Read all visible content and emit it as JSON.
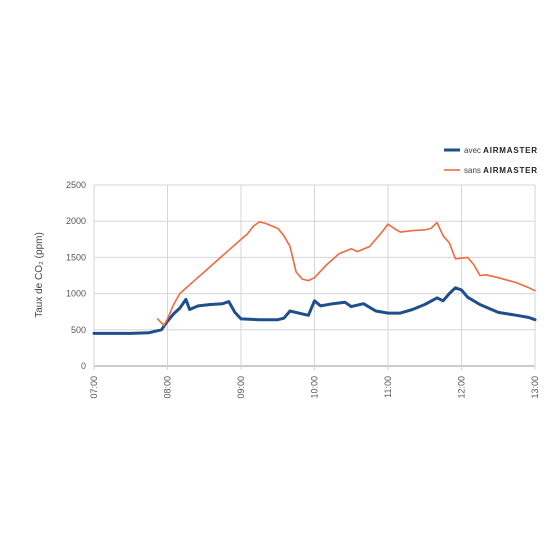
{
  "chart_data": {
    "type": "line",
    "title": "",
    "xlabel": "",
    "ylabel": "Taux de CO₂ (ppm)",
    "xlim": [
      "07:00",
      "13:00"
    ],
    "ylim": [
      0,
      2500
    ],
    "yticks": [
      0,
      500,
      1000,
      1500,
      2000,
      2500
    ],
    "xticks": [
      "07:00",
      "08:00",
      "09:00",
      "10:00",
      "11:00",
      "12:00",
      "13:00"
    ],
    "grid": "horizontal",
    "legend_position": "top-right",
    "series": [
      {
        "name": "avec AIRMASTER",
        "legend_prefix": "avec",
        "legend_brand": "AIRMASTER",
        "color": "#1f4e8c",
        "points": [
          [
            "07:00",
            450
          ],
          [
            "07:15",
            450
          ],
          [
            "07:30",
            450
          ],
          [
            "07:45",
            460
          ],
          [
            "07:55",
            500
          ],
          [
            "08:00",
            620
          ],
          [
            "08:05",
            720
          ],
          [
            "08:10",
            800
          ],
          [
            "08:15",
            920
          ],
          [
            "08:18",
            780
          ],
          [
            "08:25",
            830
          ],
          [
            "08:35",
            850
          ],
          [
            "08:45",
            860
          ],
          [
            "08:50",
            890
          ],
          [
            "08:55",
            740
          ],
          [
            "09:00",
            650
          ],
          [
            "09:15",
            640
          ],
          [
            "09:30",
            640
          ],
          [
            "09:35",
            660
          ],
          [
            "09:40",
            760
          ],
          [
            "09:50",
            720
          ],
          [
            "09:55",
            700
          ],
          [
            "10:00",
            900
          ],
          [
            "10:05",
            830
          ],
          [
            "10:15",
            860
          ],
          [
            "10:25",
            880
          ],
          [
            "10:30",
            820
          ],
          [
            "10:40",
            860
          ],
          [
            "10:50",
            760
          ],
          [
            "11:00",
            730
          ],
          [
            "11:10",
            730
          ],
          [
            "11:20",
            780
          ],
          [
            "11:30",
            850
          ],
          [
            "11:40",
            940
          ],
          [
            "11:45",
            900
          ],
          [
            "11:50",
            1000
          ],
          [
            "11:55",
            1080
          ],
          [
            "12:00",
            1050
          ],
          [
            "12:05",
            950
          ],
          [
            "12:15",
            850
          ],
          [
            "12:30",
            740
          ],
          [
            "12:45",
            700
          ],
          [
            "12:55",
            670
          ],
          [
            "13:00",
            640
          ]
        ]
      },
      {
        "name": "sans AIRMASTER",
        "legend_prefix": "sans",
        "legend_brand": "AIRMASTER",
        "color": "#f06a3e",
        "points": [
          [
            "07:52",
            650
          ],
          [
            "07:57",
            560
          ],
          [
            "08:00",
            650
          ],
          [
            "08:05",
            850
          ],
          [
            "08:10",
            1000
          ],
          [
            "08:20",
            1150
          ],
          [
            "08:30",
            1300
          ],
          [
            "08:40",
            1450
          ],
          [
            "08:50",
            1600
          ],
          [
            "09:00",
            1750
          ],
          [
            "09:05",
            1820
          ],
          [
            "09:10",
            1930
          ],
          [
            "09:15",
            1990
          ],
          [
            "09:20",
            1970
          ],
          [
            "09:30",
            1900
          ],
          [
            "09:35",
            1800
          ],
          [
            "09:40",
            1650
          ],
          [
            "09:45",
            1300
          ],
          [
            "09:50",
            1200
          ],
          [
            "09:55",
            1180
          ],
          [
            "10:00",
            1220
          ],
          [
            "10:10",
            1400
          ],
          [
            "10:20",
            1550
          ],
          [
            "10:30",
            1620
          ],
          [
            "10:35",
            1580
          ],
          [
            "10:45",
            1650
          ],
          [
            "10:55",
            1850
          ],
          [
            "11:00",
            1960
          ],
          [
            "11:05",
            1900
          ],
          [
            "11:10",
            1850
          ],
          [
            "11:20",
            1870
          ],
          [
            "11:30",
            1880
          ],
          [
            "11:35",
            1900
          ],
          [
            "11:40",
            1980
          ],
          [
            "11:45",
            1800
          ],
          [
            "11:50",
            1700
          ],
          [
            "11:55",
            1480
          ],
          [
            "12:05",
            1500
          ],
          [
            "12:10",
            1400
          ],
          [
            "12:15",
            1250
          ],
          [
            "12:20",
            1260
          ],
          [
            "12:30",
            1220
          ],
          [
            "12:45",
            1150
          ],
          [
            "12:55",
            1080
          ],
          [
            "13:00",
            1040
          ]
        ]
      }
    ]
  }
}
